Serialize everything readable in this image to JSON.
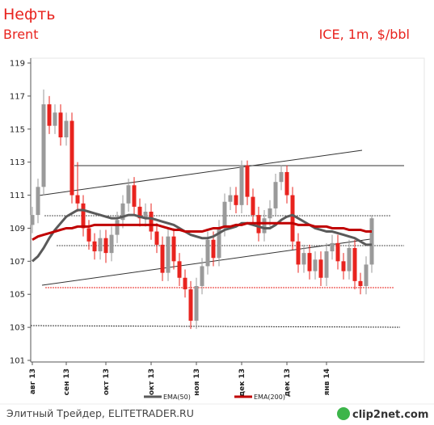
{
  "chart_data": {
    "type": "candlestick",
    "title": "Нефть",
    "subtitle": "Brent",
    "annotation": "ICE, 1m, $/bbl",
    "categories": [
      "авг 13",
      null,
      null,
      null,
      null,
      null,
      "сен 13",
      null,
      null,
      null,
      null,
      null,
      null,
      "окт 13",
      null,
      null,
      null,
      null,
      null,
      null,
      null,
      "окт 13",
      null,
      null,
      null,
      null,
      null,
      null,
      null,
      "ноя 13",
      null,
      null,
      null,
      null,
      null,
      null,
      null,
      "дек 13",
      null,
      null,
      null,
      null,
      null,
      null,
      null,
      "дек 13",
      null,
      null,
      null,
      null,
      null,
      null,
      "янв 14",
      null,
      null,
      null,
      null,
      null,
      null,
      null,
      null
    ],
    "open": [
      109.2,
      109.8,
      111.5,
      116.5,
      115.2,
      116.0,
      114.5,
      115.5,
      111.0,
      110.5,
      109.0,
      108.2,
      107.6,
      108.4,
      107.5,
      108.6,
      109.5,
      110.5,
      111.6,
      110.3,
      109.6,
      110.0,
      108.8,
      108.0,
      106.3,
      108.5,
      107.0,
      106.0,
      105.3,
      103.4,
      105.5,
      106.7,
      108.3,
      107.2,
      109.0,
      110.6,
      111.0,
      110.4,
      112.8,
      110.9,
      109.8,
      108.7,
      109.6,
      110.2,
      111.8,
      112.4,
      111.0,
      108.2,
      106.8,
      107.5,
      106.4,
      107.1,
      106.0,
      107.6,
      108.1,
      107.0,
      106.4,
      107.8,
      105.8,
      105.5,
      106.8
    ],
    "high": [
      110.3,
      112.0,
      117.4,
      117.0,
      116.5,
      116.5,
      116.0,
      116.0,
      113.0,
      111.0,
      109.5,
      108.7,
      108.9,
      108.9,
      109.1,
      110.0,
      111.0,
      112.0,
      112.1,
      110.8,
      110.5,
      110.5,
      109.3,
      108.5,
      109.0,
      109.0,
      107.5,
      106.5,
      105.8,
      106.0,
      107.2,
      108.8,
      108.8,
      109.5,
      111.1,
      111.5,
      111.5,
      113.1,
      113.1,
      111.4,
      110.3,
      110.1,
      110.7,
      112.3,
      112.8,
      112.8,
      111.5,
      108.7,
      108.0,
      108.0,
      107.6,
      107.6,
      108.1,
      108.6,
      108.6,
      107.5,
      108.3,
      108.3,
      106.3,
      107.3,
      109.8
    ],
    "low": [
      108.7,
      109.3,
      111.0,
      114.7,
      114.7,
      114.0,
      114.0,
      110.5,
      110.0,
      108.5,
      107.7,
      107.1,
      107.1,
      106.9,
      107.0,
      108.1,
      109.0,
      110.0,
      109.8,
      109.1,
      109.1,
      108.3,
      107.5,
      105.8,
      105.8,
      106.5,
      105.5,
      104.8,
      102.9,
      102.9,
      105.0,
      106.2,
      106.7,
      106.7,
      108.5,
      110.1,
      109.9,
      109.9,
      110.4,
      109.3,
      108.2,
      108.2,
      109.1,
      109.7,
      111.3,
      110.5,
      107.7,
      106.3,
      106.3,
      105.9,
      105.9,
      105.5,
      105.5,
      107.1,
      106.5,
      105.9,
      105.9,
      105.3,
      105.0,
      105.0,
      106.3
    ],
    "close": [
      109.8,
      111.5,
      116.5,
      115.2,
      116.0,
      114.5,
      115.5,
      111.0,
      110.5,
      109.0,
      108.2,
      107.6,
      108.4,
      107.5,
      108.6,
      109.5,
      110.5,
      111.6,
      110.3,
      109.6,
      110.0,
      108.8,
      108.0,
      106.3,
      108.5,
      107.0,
      106.0,
      105.3,
      103.4,
      105.5,
      106.7,
      108.3,
      107.2,
      109.0,
      110.6,
      111.0,
      110.4,
      112.8,
      110.9,
      109.8,
      108.7,
      109.6,
      110.2,
      111.8,
      112.4,
      111.0,
      108.2,
      106.8,
      107.5,
      106.4,
      107.1,
      106.0,
      107.6,
      108.1,
      107.0,
      106.4,
      107.8,
      105.8,
      105.5,
      106.8,
      109.6
    ],
    "up_color": "#9a9a9a",
    "down_color": "#e8231e",
    "series": [
      {
        "name": "EMA(50)",
        "color": "#5a5a5a",
        "values": [
          107.0,
          107.3,
          107.8,
          108.4,
          108.9,
          109.3,
          109.7,
          109.9,
          110.1,
          110.1,
          110.0,
          109.9,
          109.8,
          109.7,
          109.6,
          109.6,
          109.7,
          109.8,
          109.8,
          109.7,
          109.6,
          109.6,
          109.5,
          109.4,
          109.3,
          109.2,
          109.0,
          108.8,
          108.6,
          108.5,
          108.4,
          108.4,
          108.5,
          108.7,
          108.9,
          109.0,
          109.1,
          109.3,
          109.3,
          109.2,
          109.1,
          109.0,
          109.0,
          109.2,
          109.5,
          109.7,
          109.8,
          109.6,
          109.4,
          109.2,
          109.0,
          108.9,
          108.8,
          108.8,
          108.7,
          108.6,
          108.5,
          108.4,
          108.2,
          108.0,
          108.0
        ]
      },
      {
        "name": "EMA(200)",
        "color": "#c00000",
        "values": [
          108.3,
          108.5,
          108.6,
          108.7,
          108.8,
          108.9,
          109.0,
          109.0,
          109.1,
          109.1,
          109.1,
          109.2,
          109.2,
          109.2,
          109.2,
          109.2,
          109.2,
          109.2,
          109.2,
          109.2,
          109.2,
          109.2,
          109.2,
          109.1,
          109.0,
          108.9,
          108.9,
          108.8,
          108.8,
          108.8,
          108.8,
          108.9,
          109.0,
          109.0,
          109.1,
          109.1,
          109.2,
          109.2,
          109.3,
          109.3,
          109.3,
          109.3,
          109.3,
          109.3,
          109.3,
          109.3,
          109.3,
          109.2,
          109.2,
          109.2,
          109.1,
          109.1,
          109.1,
          109.0,
          109.0,
          109.0,
          108.9,
          108.9,
          108.9,
          108.8,
          108.8
        ]
      }
    ],
    "ylim": [
      101,
      119
    ],
    "yticks": [
      101,
      103,
      105,
      107,
      109,
      111,
      113,
      115,
      117,
      119
    ],
    "footer": "Элитный Трейдер, ELITETRADER.RU",
    "logo": "clip2net.com"
  }
}
